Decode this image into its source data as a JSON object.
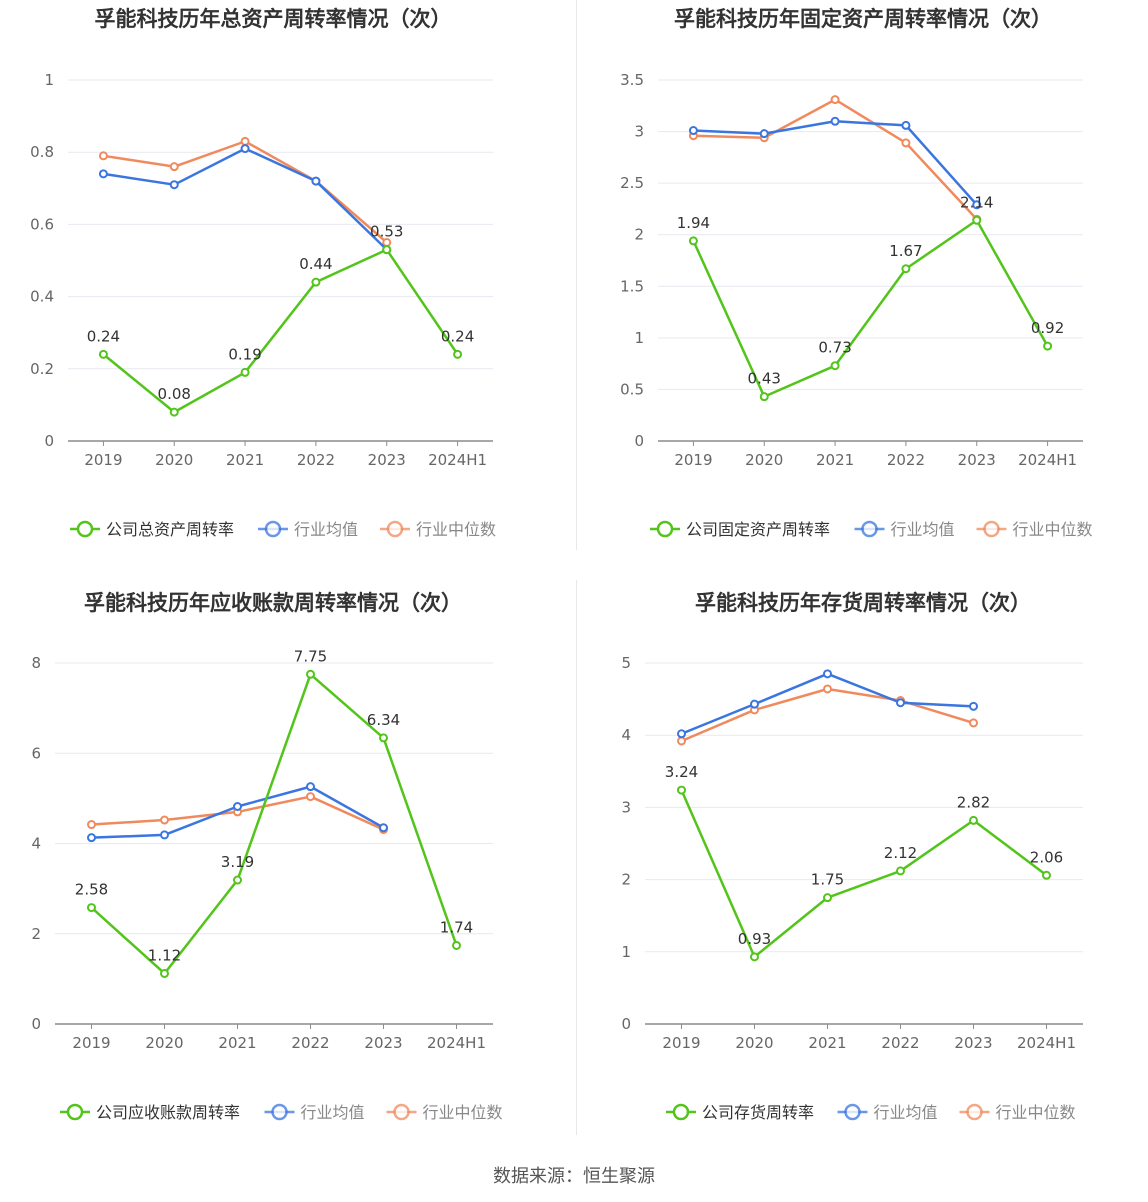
{
  "source": "数据来源：恒生聚源",
  "colors": {
    "company": "#52c41a",
    "industry_avg": "#3a75e0",
    "industry_median": "#f08a5d",
    "grid": "#e6e9f0",
    "axis": "#8c8c8c",
    "tick": "#666666",
    "label": "#333333",
    "title": "#333333"
  },
  "chart_data": [
    {
      "type": "line",
      "title": "孚能科技历年总资产周转率情况（次）",
      "categories": [
        "2019",
        "2020",
        "2021",
        "2022",
        "2023",
        "2024H1"
      ],
      "ylim": [
        0,
        1
      ],
      "yticks": [
        0,
        0.2,
        0.4,
        0.6,
        0.8,
        1
      ],
      "ytick_labels": [
        "0",
        "0.2",
        "0.4",
        "0.6",
        "0.8",
        "1"
      ],
      "grid": true,
      "legend_position": "bottom",
      "series": [
        {
          "key": "company",
          "name": "公司总资产周转率",
          "values": [
            0.24,
            0.08,
            0.19,
            0.44,
            0.53,
            0.24
          ],
          "labels": [
            "0.24",
            "0.08",
            "0.19",
            "0.44",
            "0.53",
            "0.24"
          ]
        },
        {
          "key": "industry_avg",
          "name": "行业均值",
          "values": [
            0.74,
            0.71,
            0.81,
            0.72,
            0.53,
            null
          ]
        },
        {
          "key": "industry_median",
          "name": "行业中位数",
          "values": [
            0.79,
            0.76,
            0.83,
            0.72,
            0.55,
            null
          ]
        }
      ]
    },
    {
      "type": "line",
      "title": "孚能科技历年固定资产周转率情况（次）",
      "categories": [
        "2019",
        "2020",
        "2021",
        "2022",
        "2023",
        "2024H1"
      ],
      "ylim": [
        0,
        3.5
      ],
      "yticks": [
        0,
        0.5,
        1,
        1.5,
        2,
        2.5,
        3,
        3.5
      ],
      "ytick_labels": [
        "0",
        "0.5",
        "1",
        "1.5",
        "2",
        "2.5",
        "3",
        "3.5"
      ],
      "grid": true,
      "legend_position": "bottom",
      "series": [
        {
          "key": "company",
          "name": "公司固定资产周转率",
          "values": [
            1.94,
            0.43,
            0.73,
            1.67,
            2.14,
            0.92
          ],
          "labels": [
            "1.94",
            "0.43",
            "0.73",
            "1.67",
            "2.14",
            "0.92"
          ]
        },
        {
          "key": "industry_avg",
          "name": "行业均值",
          "values": [
            3.01,
            2.98,
            3.1,
            3.06,
            2.29,
            null
          ]
        },
        {
          "key": "industry_median",
          "name": "行业中位数",
          "values": [
            2.96,
            2.94,
            3.31,
            2.89,
            2.15,
            null
          ]
        }
      ]
    },
    {
      "type": "line",
      "title": "孚能科技历年应收账款周转率情况（次）",
      "categories": [
        "2019",
        "2020",
        "2021",
        "2022",
        "2023",
        "2024H1"
      ],
      "ylim": [
        0,
        8
      ],
      "yticks": [
        0,
        2,
        4,
        6,
        8
      ],
      "ytick_labels": [
        "0",
        "2",
        "4",
        "6",
        "8"
      ],
      "grid": true,
      "legend_position": "bottom",
      "series": [
        {
          "key": "company",
          "name": "公司应收账款周转率",
          "values": [
            2.58,
            1.12,
            3.19,
            7.75,
            6.34,
            1.74
          ],
          "labels": [
            "2.58",
            "1.12",
            "3.19",
            "7.75",
            "6.34",
            "1.74"
          ]
        },
        {
          "key": "industry_avg",
          "name": "行业均值",
          "values": [
            4.13,
            4.19,
            4.82,
            5.26,
            4.35,
            null
          ]
        },
        {
          "key": "industry_median",
          "name": "行业中位数",
          "values": [
            4.42,
            4.52,
            4.7,
            5.04,
            4.31,
            null
          ]
        }
      ]
    },
    {
      "type": "line",
      "title": "孚能科技历年存货周转率情况（次）",
      "categories": [
        "2019",
        "2020",
        "2021",
        "2022",
        "2023",
        "2024H1"
      ],
      "ylim": [
        0,
        5
      ],
      "yticks": [
        0,
        1,
        2,
        3,
        4,
        5
      ],
      "ytick_labels": [
        "0",
        "1",
        "2",
        "3",
        "4",
        "5"
      ],
      "grid": true,
      "legend_position": "bottom",
      "series": [
        {
          "key": "company",
          "name": "公司存货周转率",
          "values": [
            3.24,
            0.93,
            1.75,
            2.12,
            2.82,
            2.06
          ],
          "labels": [
            "3.24",
            "0.93",
            "1.75",
            "2.12",
            "2.82",
            "2.06"
          ]
        },
        {
          "key": "industry_avg",
          "name": "行业均值",
          "values": [
            4.02,
            4.43,
            4.85,
            4.45,
            4.4,
            null
          ]
        },
        {
          "key": "industry_median",
          "name": "行业中位数",
          "values": [
            3.92,
            4.35,
            4.64,
            4.48,
            4.17,
            null
          ]
        }
      ]
    }
  ]
}
